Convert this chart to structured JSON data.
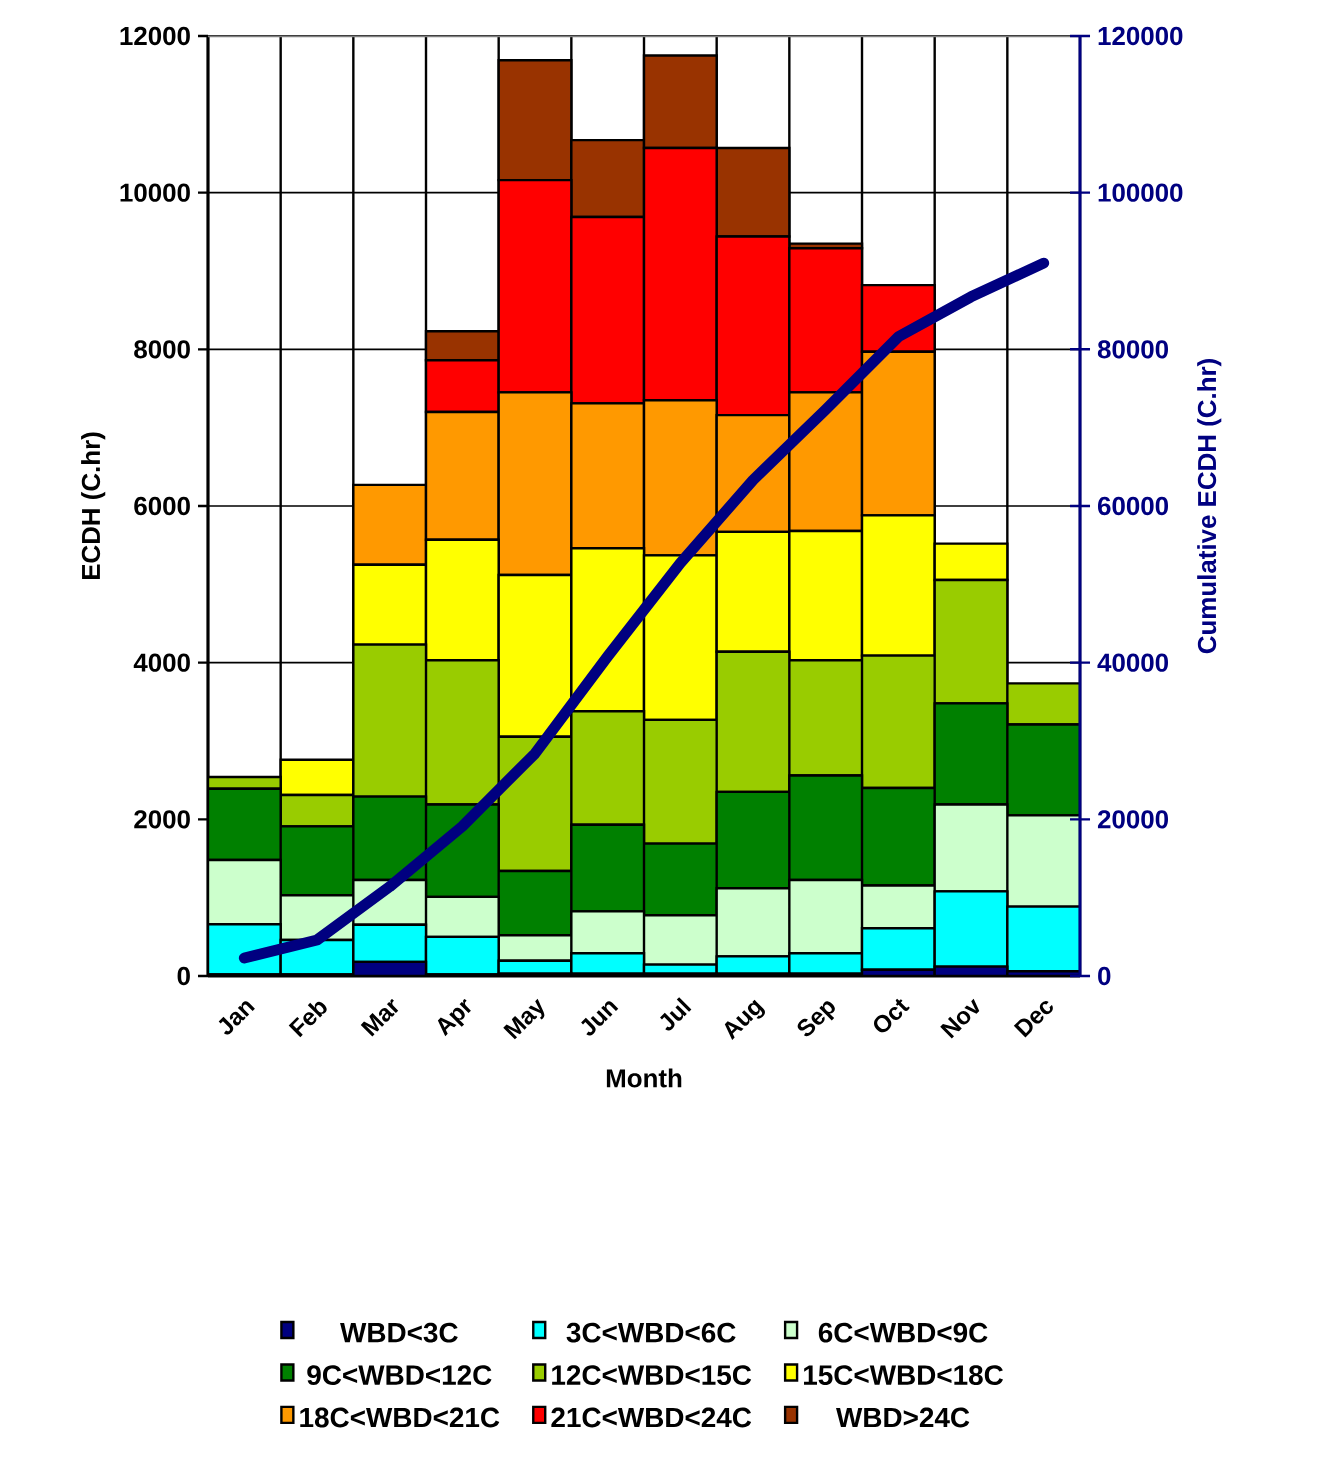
{
  "chart_data": {
    "type": "bar",
    "stacked": true,
    "xlabel": "Month",
    "ylabel": "ECDH (C.hr)",
    "y2label": "Cumulative ECDH (C.hr)",
    "categories": [
      "Jan",
      "Feb",
      "Mar",
      "Apr",
      "May",
      "Jun",
      "Jul",
      "Aug",
      "Sep",
      "Oct",
      "Nov",
      "Dec"
    ],
    "series": [
      {
        "name": "WBD<3C",
        "color": "#000080",
        "values": [
          20,
          20,
          180,
          20,
          30,
          30,
          30,
          30,
          30,
          80,
          120,
          60
        ]
      },
      {
        "name": "3C<WBD<6C",
        "color": "#00ffff",
        "values": [
          640,
          440,
          475,
          480,
          165,
          260,
          115,
          220,
          260,
          530,
          960,
          825
        ]
      },
      {
        "name": "6C<WBD<9C",
        "color": "#ccffcc",
        "values": [
          820,
          570,
          570,
          510,
          325,
          535,
          630,
          870,
          935,
          545,
          1110,
          1165
        ]
      },
      {
        "name": "9C<WBD<12C",
        "color": "#008000",
        "values": [
          910,
          880,
          1065,
          1180,
          820,
          1105,
          915,
          1230,
          1335,
          1245,
          1290,
          1160
        ]
      },
      {
        "name": "12C<WBD<15C",
        "color": "#99cc00",
        "values": [
          150,
          400,
          1940,
          1840,
          1715,
          1450,
          1580,
          1790,
          1470,
          1690,
          1575,
          525
        ]
      },
      {
        "name": "15C<WBD<18C",
        "color": "#ffff00",
        "values": [
          0,
          450,
          1020,
          1540,
          2065,
          2080,
          2100,
          1530,
          1650,
          1790,
          465,
          0
        ]
      },
      {
        "name": "18C<WBD<21C",
        "color": "#ff9900",
        "values": [
          0,
          0,
          1020,
          1630,
          2330,
          1850,
          1980,
          1490,
          1770,
          2090,
          0,
          0
        ]
      },
      {
        "name": "21C<WBD<24C",
        "color": "#ff0000",
        "values": [
          0,
          0,
          0,
          660,
          2710,
          2380,
          3220,
          2280,
          1840,
          850,
          0,
          0
        ]
      },
      {
        "name": "WBD>24C",
        "color": "#993300",
        "values": [
          0,
          0,
          0,
          370,
          1530,
          980,
          1180,
          1130,
          60,
          0,
          0,
          0
        ]
      },
      {
        "type": "line",
        "axis": "y2",
        "color": "#000080",
        "values": [
          2300,
          4600,
          11400,
          19100,
          28400,
          40800,
          52700,
          63300,
          72300,
          81600,
          86700,
          91000
        ]
      }
    ],
    "ylim": [
      0,
      12000
    ],
    "yticks": [
      0,
      2000,
      4000,
      6000,
      8000,
      10000,
      12000
    ],
    "y2lim": [
      0,
      120000
    ],
    "y2ticks": [
      0,
      20000,
      40000,
      60000,
      80000,
      100000,
      120000
    ],
    "grid": true,
    "legend": "bottom"
  }
}
